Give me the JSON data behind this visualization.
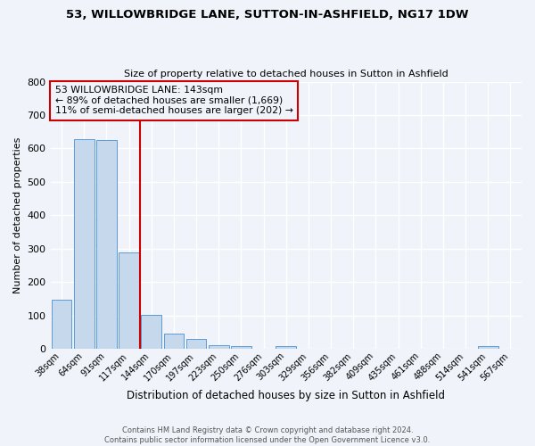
{
  "title": "53, WILLOWBRIDGE LANE, SUTTON-IN-ASHFIELD, NG17 1DW",
  "subtitle": "Size of property relative to detached houses in Sutton in Ashfield",
  "xlabel": "Distribution of detached houses by size in Sutton in Ashfield",
  "ylabel": "Number of detached properties",
  "bar_labels": [
    "38sqm",
    "64sqm",
    "91sqm",
    "117sqm",
    "144sqm",
    "170sqm",
    "197sqm",
    "223sqm",
    "250sqm",
    "276sqm",
    "303sqm",
    "329sqm",
    "356sqm",
    "382sqm",
    "409sqm",
    "435sqm",
    "461sqm",
    "488sqm",
    "514sqm",
    "541sqm",
    "567sqm"
  ],
  "bar_values": [
    148,
    628,
    625,
    288,
    102,
    46,
    30,
    10,
    8,
    0,
    8,
    0,
    0,
    0,
    0,
    0,
    0,
    0,
    0,
    8,
    0
  ],
  "bar_color": "#c5d8ec",
  "bar_edge_color": "#5b9bd5",
  "background_color": "#f0f4fa",
  "grid_color": "#ffffff",
  "ylim": [
    0,
    800
  ],
  "yticks": [
    0,
    100,
    200,
    300,
    400,
    500,
    600,
    700,
    800
  ],
  "vline_color": "#cc0000",
  "annotation_title": "53 WILLOWBRIDGE LANE: 143sqm",
  "annotation_line1": "← 89% of detached houses are smaller (1,669)",
  "annotation_line2": "11% of semi-detached houses are larger (202) →",
  "annotation_box_color": "#cc0000",
  "footer_line1": "Contains HM Land Registry data © Crown copyright and database right 2024.",
  "footer_line2": "Contains public sector information licensed under the Open Government Licence v3.0."
}
